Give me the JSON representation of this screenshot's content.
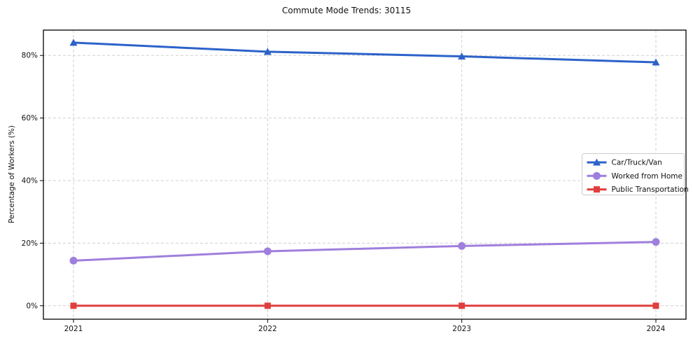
{
  "chart_data": {
    "type": "line",
    "title": "Commute Mode Trends: 30115",
    "xlabel": "",
    "ylabel": "Percentage of Workers (%)",
    "categories": [
      "2021",
      "2022",
      "2023",
      "2024"
    ],
    "series": [
      {
        "name": "Car/Truck/Van",
        "values": [
          84.1,
          81.2,
          79.7,
          77.8
        ],
        "color": "#2c62c9",
        "marker": "triangle"
      },
      {
        "name": "Worked from Home",
        "values": [
          14.4,
          17.4,
          19.1,
          20.4
        ],
        "color": "#9f7fdd",
        "marker": "circle"
      },
      {
        "name": "Public Transportation",
        "values": [
          0.0,
          0.0,
          0.0,
          0.0
        ],
        "color": "#e03e3e",
        "marker": "square"
      }
    ],
    "yticks": [
      0,
      20,
      40,
      60,
      80
    ],
    "ytick_labels": [
      "0%",
      "20%",
      "40%",
      "60%",
      "80%"
    ],
    "ylim": [
      -4.3,
      88.1
    ],
    "grid": true,
    "legend_position": "center right"
  },
  "colors": {
    "grid": "#cfcfcf",
    "spine": "#000000",
    "background": "#ffffff",
    "legend_border": "#cccccc"
  }
}
